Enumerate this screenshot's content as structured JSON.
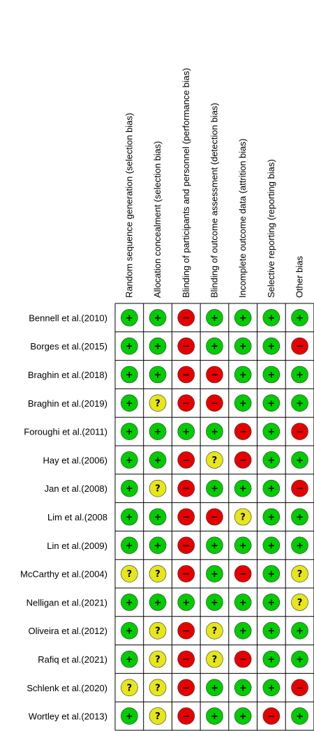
{
  "chart_data": {
    "type": "table",
    "columns": [
      "Random sequence generation (selection bias)",
      "Allocation concealment (selection bias)",
      "Blinding of participants and personnel (performance bias)",
      "Blinding of outcome assessment (detection bias)",
      "Incomplete outcome data (attrition bias)",
      "Selective reporting (reporting bias)",
      "Other bias"
    ],
    "rows": [
      {
        "study": "Bennell et al.(2010)",
        "ratings": [
          "low",
          "low",
          "high",
          "low",
          "low",
          "low",
          "low"
        ]
      },
      {
        "study": "Borges et al.(2015)",
        "ratings": [
          "low",
          "low",
          "high",
          "low",
          "low",
          "low",
          "high"
        ]
      },
      {
        "study": "Braghin et al.(2018)",
        "ratings": [
          "low",
          "low",
          "high",
          "high",
          "low",
          "low",
          "low"
        ]
      },
      {
        "study": "Braghin et al.(2019)",
        "ratings": [
          "low",
          "unclear",
          "high",
          "high",
          "low",
          "low",
          "low"
        ]
      },
      {
        "study": "Foroughi et al.(2011)",
        "ratings": [
          "low",
          "low",
          "low",
          "low",
          "high",
          "low",
          "high"
        ]
      },
      {
        "study": "Hay et al.(2006)",
        "ratings": [
          "low",
          "low",
          "high",
          "unclear",
          "high",
          "low",
          "low"
        ]
      },
      {
        "study": "Jan et al.(2008)",
        "ratings": [
          "low",
          "unclear",
          "high",
          "low",
          "low",
          "low",
          "high"
        ]
      },
      {
        "study": "Lim et al.(2008",
        "ratings": [
          "low",
          "low",
          "high",
          "high",
          "unclear",
          "low",
          "low"
        ]
      },
      {
        "study": "Lin et al.(2009)",
        "ratings": [
          "low",
          "low",
          "high",
          "low",
          "low",
          "low",
          "low"
        ]
      },
      {
        "study": "McCarthy et al.(2004)",
        "ratings": [
          "unclear",
          "unclear",
          "high",
          "low",
          "high",
          "low",
          "unclear"
        ]
      },
      {
        "study": "Nelligan et al.(2021)",
        "ratings": [
          "low",
          "low",
          "low",
          "low",
          "low",
          "low",
          "unclear"
        ]
      },
      {
        "study": "Oliveira  et al.(2012)",
        "ratings": [
          "low",
          "unclear",
          "high",
          "unclear",
          "low",
          "low",
          "low"
        ]
      },
      {
        "study": "Rafiq et al.(2021)",
        "ratings": [
          "low",
          "unclear",
          "high",
          "unclear",
          "high",
          "low",
          "low"
        ]
      },
      {
        "study": "Schlenk et al.(2020)",
        "ratings": [
          "unclear",
          "unclear",
          "high",
          "low",
          "low",
          "low",
          "high"
        ]
      },
      {
        "study": "Wortley et al.(2013)",
        "ratings": [
          "low",
          "unclear",
          "high",
          "low",
          "low",
          "high",
          "low"
        ]
      }
    ],
    "legend": {
      "low": {
        "symbol": "+",
        "color": "#00cc00"
      },
      "unclear": {
        "symbol": "?",
        "color": "#e6e619"
      },
      "high": {
        "symbol": "−",
        "color": "#e60000"
      }
    }
  }
}
